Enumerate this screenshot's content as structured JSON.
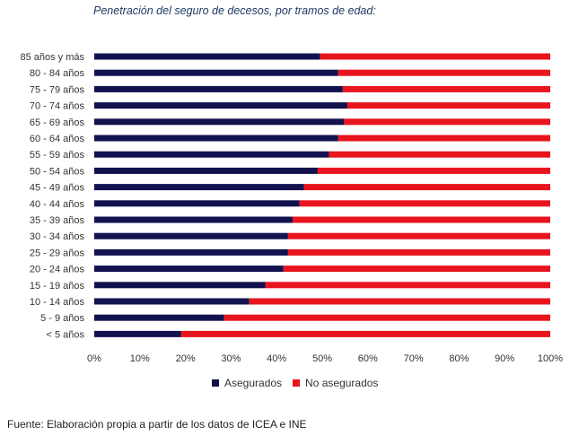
{
  "chart_data": {
    "type": "bar",
    "orientation": "horizontal",
    "stacked": true,
    "percent_scale": true,
    "title": "Penetración del seguro de decesos, por tramos de edad:",
    "categories": [
      "85 años y más",
      "80 - 84 años",
      "75 - 79 años",
      "70 - 74 años",
      "65 - 69 años",
      "60 - 64 años",
      "55 - 59 años",
      "50 - 54 años",
      "45 - 49 años",
      "40 - 44 años",
      "35 - 39 años",
      "30 - 34 años",
      "25 - 29 años",
      "20 - 24 años",
      "15 - 19 años",
      "10 - 14 años",
      "5 - 9 años",
      "< 5 años"
    ],
    "series": [
      {
        "name": "Asegurados",
        "color": "#12124f",
        "values": [
          49.5,
          53.5,
          54.5,
          55.5,
          54.8,
          53.5,
          51.5,
          49.0,
          46.0,
          45.0,
          43.5,
          42.5,
          42.5,
          41.5,
          37.5,
          34.0,
          28.5,
          19.0
        ]
      },
      {
        "name": "No asegurados",
        "color": "#e8141e",
        "values": [
          50.5,
          46.5,
          45.5,
          44.5,
          45.2,
          46.5,
          48.5,
          51.0,
          54.0,
          55.0,
          56.5,
          57.5,
          57.5,
          58.5,
          62.5,
          66.0,
          71.5,
          81.0
        ]
      }
    ],
    "xlim": [
      0,
      100
    ],
    "xticks": [
      "0%",
      "10%",
      "20%",
      "30%",
      "40%",
      "50%",
      "60%",
      "70%",
      "80%",
      "90%",
      "100%"
    ],
    "xlabel": "",
    "ylabel": "",
    "legend_position": "bottom",
    "grid": false
  },
  "source": "Fuente: Elaboración propia a partir de los datos de ICEA e INE"
}
